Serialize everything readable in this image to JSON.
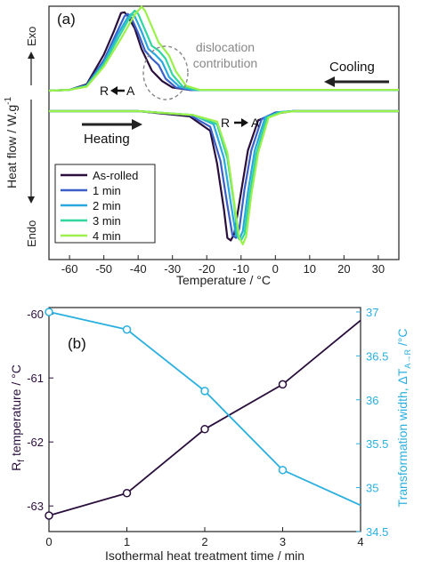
{
  "chart_data": [
    {
      "type": "line",
      "panel_label": "(a)",
      "xlabel": "Temperature / °C",
      "ylabel": "Heat flow / W.g",
      "ylabel_superscript": "-1",
      "y_top_label": "Exo",
      "y_bottom_label": "Endo",
      "xlim": [
        -66,
        36
      ],
      "x_ticks": [
        -60,
        -50,
        -40,
        -30,
        -20,
        -10,
        0,
        10,
        20,
        30
      ],
      "ylim": [
        -1.05,
        1.05
      ],
      "annotations": {
        "dislocation": "dislocation\ncontribution",
        "cooling": "Cooling",
        "heating": "Heating",
        "r_to_a_cooling": "R",
        "r_to_a_cooling_end": "A",
        "r_to_a_heating": "R",
        "r_to_a_heating_end": "A"
      },
      "legend": {
        "position": "bottom-left"
      },
      "series": [
        {
          "name": "As-rolled",
          "color": "#2a0f3d",
          "cooling": [
            [
              -66,
              0
            ],
            [
              -60,
              0.01
            ],
            [
              -55,
              0.08
            ],
            [
              -50,
              0.45
            ],
            [
              -47,
              0.75
            ],
            [
              -45,
              0.97
            ],
            [
              -44,
              0.98
            ],
            [
              -43,
              0.93
            ],
            [
              -41,
              0.78
            ],
            [
              -39,
              0.52
            ],
            [
              -36,
              0.25
            ],
            [
              -33,
              0.12
            ],
            [
              -30,
              0.04
            ],
            [
              -25,
              0.01
            ],
            [
              0,
              0.01
            ],
            [
              36,
              0.01
            ]
          ],
          "heating": [
            [
              -66,
              0
            ],
            [
              -40,
              0
            ],
            [
              -25,
              -0.04
            ],
            [
              -19,
              -0.15
            ],
            [
              -17,
              -0.4
            ],
            [
              -15,
              -0.75
            ],
            [
              -14,
              -0.97
            ],
            [
              -13,
              -0.99
            ],
            [
              -12,
              -0.94
            ],
            [
              -10,
              -0.62
            ],
            [
              -8,
              -0.3
            ],
            [
              -5,
              -0.07
            ],
            [
              0,
              -0.02
            ],
            [
              5,
              0
            ],
            [
              36,
              0
            ]
          ]
        },
        {
          "name": "1 min",
          "color": "#3b5fc9",
          "cooling": [
            [
              -66,
              0
            ],
            [
              -60,
              0.01
            ],
            [
              -55,
              0.07
            ],
            [
              -50,
              0.38
            ],
            [
              -46,
              0.75
            ],
            [
              -44,
              0.93
            ],
            [
              -43,
              0.96
            ],
            [
              -42,
              0.91
            ],
            [
              -40,
              0.72
            ],
            [
              -38,
              0.5
            ],
            [
              -36,
              0.4
            ],
            [
              -34,
              0.32
            ],
            [
              -32,
              0.15
            ],
            [
              -29,
              0.04
            ],
            [
              -25,
              0.01
            ],
            [
              0,
              0.01
            ],
            [
              36,
              0.01
            ]
          ],
          "heating": [
            [
              -66,
              0
            ],
            [
              -40,
              0
            ],
            [
              -25,
              -0.03
            ],
            [
              -19,
              -0.12
            ],
            [
              -16,
              -0.38
            ],
            [
              -14,
              -0.72
            ],
            [
              -12.5,
              -0.95
            ],
            [
              -11.5,
              -0.97
            ],
            [
              -10.5,
              -0.9
            ],
            [
              -9,
              -0.6
            ],
            [
              -7,
              -0.3
            ],
            [
              -4,
              -0.06
            ],
            [
              0,
              -0.01
            ],
            [
              5,
              0
            ],
            [
              36,
              0
            ]
          ]
        },
        {
          "name": "2 min",
          "color": "#29a8e0",
          "cooling": [
            [
              -66,
              0
            ],
            [
              -60,
              0.01
            ],
            [
              -55,
              0.06
            ],
            [
              -50,
              0.35
            ],
            [
              -46,
              0.7
            ],
            [
              -43,
              0.92
            ],
            [
              -42,
              0.96
            ],
            [
              -41,
              0.93
            ],
            [
              -39,
              0.74
            ],
            [
              -37,
              0.52
            ],
            [
              -35,
              0.45
            ],
            [
              -33,
              0.36
            ],
            [
              -31,
              0.17
            ],
            [
              -28,
              0.05
            ],
            [
              -24,
              0.01
            ],
            [
              0,
              0.01
            ],
            [
              36,
              0.01
            ]
          ],
          "heating": [
            [
              -66,
              0
            ],
            [
              -40,
              0
            ],
            [
              -24,
              -0.03
            ],
            [
              -18,
              -0.1
            ],
            [
              -15,
              -0.36
            ],
            [
              -13,
              -0.7
            ],
            [
              -11.5,
              -0.95
            ],
            [
              -10.5,
              -0.98
            ],
            [
              -9.5,
              -0.92
            ],
            [
              -8,
              -0.62
            ],
            [
              -6,
              -0.3
            ],
            [
              -3,
              -0.05
            ],
            [
              1,
              -0.01
            ],
            [
              5,
              0
            ],
            [
              36,
              0
            ]
          ]
        },
        {
          "name": "3 min",
          "color": "#2fd6a0",
          "cooling": [
            [
              -66,
              0
            ],
            [
              -60,
              0.01
            ],
            [
              -55,
              0.06
            ],
            [
              -50,
              0.33
            ],
            [
              -45,
              0.72
            ],
            [
              -42,
              0.95
            ],
            [
              -41,
              1.0
            ],
            [
              -40,
              0.96
            ],
            [
              -38,
              0.76
            ],
            [
              -36,
              0.56
            ],
            [
              -34,
              0.5
            ],
            [
              -32,
              0.4
            ],
            [
              -30,
              0.2
            ],
            [
              -27,
              0.05
            ],
            [
              -23,
              0.01
            ],
            [
              0,
              0.01
            ],
            [
              36,
              0.01
            ]
          ],
          "heating": [
            [
              -66,
              0
            ],
            [
              -40,
              0
            ],
            [
              -24,
              -0.03
            ],
            [
              -17,
              -0.1
            ],
            [
              -14,
              -0.36
            ],
            [
              -12,
              -0.72
            ],
            [
              -11,
              -0.96
            ],
            [
              -10,
              -0.99
            ],
            [
              -9,
              -0.94
            ],
            [
              -7.5,
              -0.64
            ],
            [
              -5.5,
              -0.32
            ],
            [
              -2.5,
              -0.05
            ],
            [
              1,
              -0.01
            ],
            [
              5,
              0
            ],
            [
              36,
              0
            ]
          ]
        },
        {
          "name": "4 min",
          "color": "#9cf04a",
          "cooling": [
            [
              -66,
              0
            ],
            [
              -60,
              0.01
            ],
            [
              -55,
              0.05
            ],
            [
              -50,
              0.3
            ],
            [
              -45,
              0.65
            ],
            [
              -41,
              0.95
            ],
            [
              -39,
              1.05
            ],
            [
              -38,
              1.0
            ],
            [
              -36,
              0.8
            ],
            [
              -34,
              0.6
            ],
            [
              -33,
              0.55
            ],
            [
              -31,
              0.44
            ],
            [
              -29,
              0.24
            ],
            [
              -26,
              0.06
            ],
            [
              -22,
              0.01
            ],
            [
              0,
              0.01
            ],
            [
              36,
              0.01
            ]
          ],
          "heating": [
            [
              -66,
              0
            ],
            [
              -40,
              0
            ],
            [
              -24,
              -0.03
            ],
            [
              -17,
              -0.08
            ],
            [
              -14,
              -0.32
            ],
            [
              -12,
              -0.7
            ],
            [
              -10.5,
              -0.97
            ],
            [
              -9.5,
              -1.02
            ],
            [
              -8.5,
              -0.96
            ],
            [
              -7,
              -0.64
            ],
            [
              -5,
              -0.32
            ],
            [
              -2,
              -0.05
            ],
            [
              2,
              -0.01
            ],
            [
              6,
              0
            ],
            [
              36,
              0
            ]
          ]
        }
      ]
    },
    {
      "type": "line",
      "panel_label": "(b)",
      "xlabel": "Isothermal heat treatment time / min",
      "xlim": [
        0,
        4
      ],
      "x_ticks": [
        0,
        1,
        2,
        3,
        4
      ],
      "y_left": {
        "label": "R",
        "label_subscript": "f",
        "label_rest": " temperature / °C",
        "lim": [
          -63.4,
          -59.9
        ],
        "ticks": [
          -60,
          -61,
          -62,
          -63
        ],
        "color": "#2a0f3d"
      },
      "y_right": {
        "label": "Transformation width, ΔT",
        "label_subscript": "A→R",
        "label_rest": " /°C",
        "lim": [
          34.5,
          37.05
        ],
        "ticks": [
          37,
          36.5,
          36,
          35.5,
          35,
          34.5
        ],
        "color": "#2ab0df"
      },
      "series": [
        {
          "name": "Rf temperature",
          "axis": "left",
          "color": "#2a0f3d",
          "x": [
            0,
            1,
            2,
            3,
            4
          ],
          "y": [
            -63.15,
            -62.8,
            -61.8,
            -61.1,
            -60.1
          ],
          "markers": [
            true,
            true,
            true,
            true,
            false
          ]
        },
        {
          "name": "Transformation width",
          "axis": "right",
          "color": "#2ab0df",
          "x": [
            0,
            1,
            2,
            3,
            4
          ],
          "y": [
            37.0,
            36.8,
            36.1,
            35.2,
            34.8
          ],
          "markers": [
            true,
            true,
            true,
            true,
            false
          ]
        }
      ]
    }
  ]
}
